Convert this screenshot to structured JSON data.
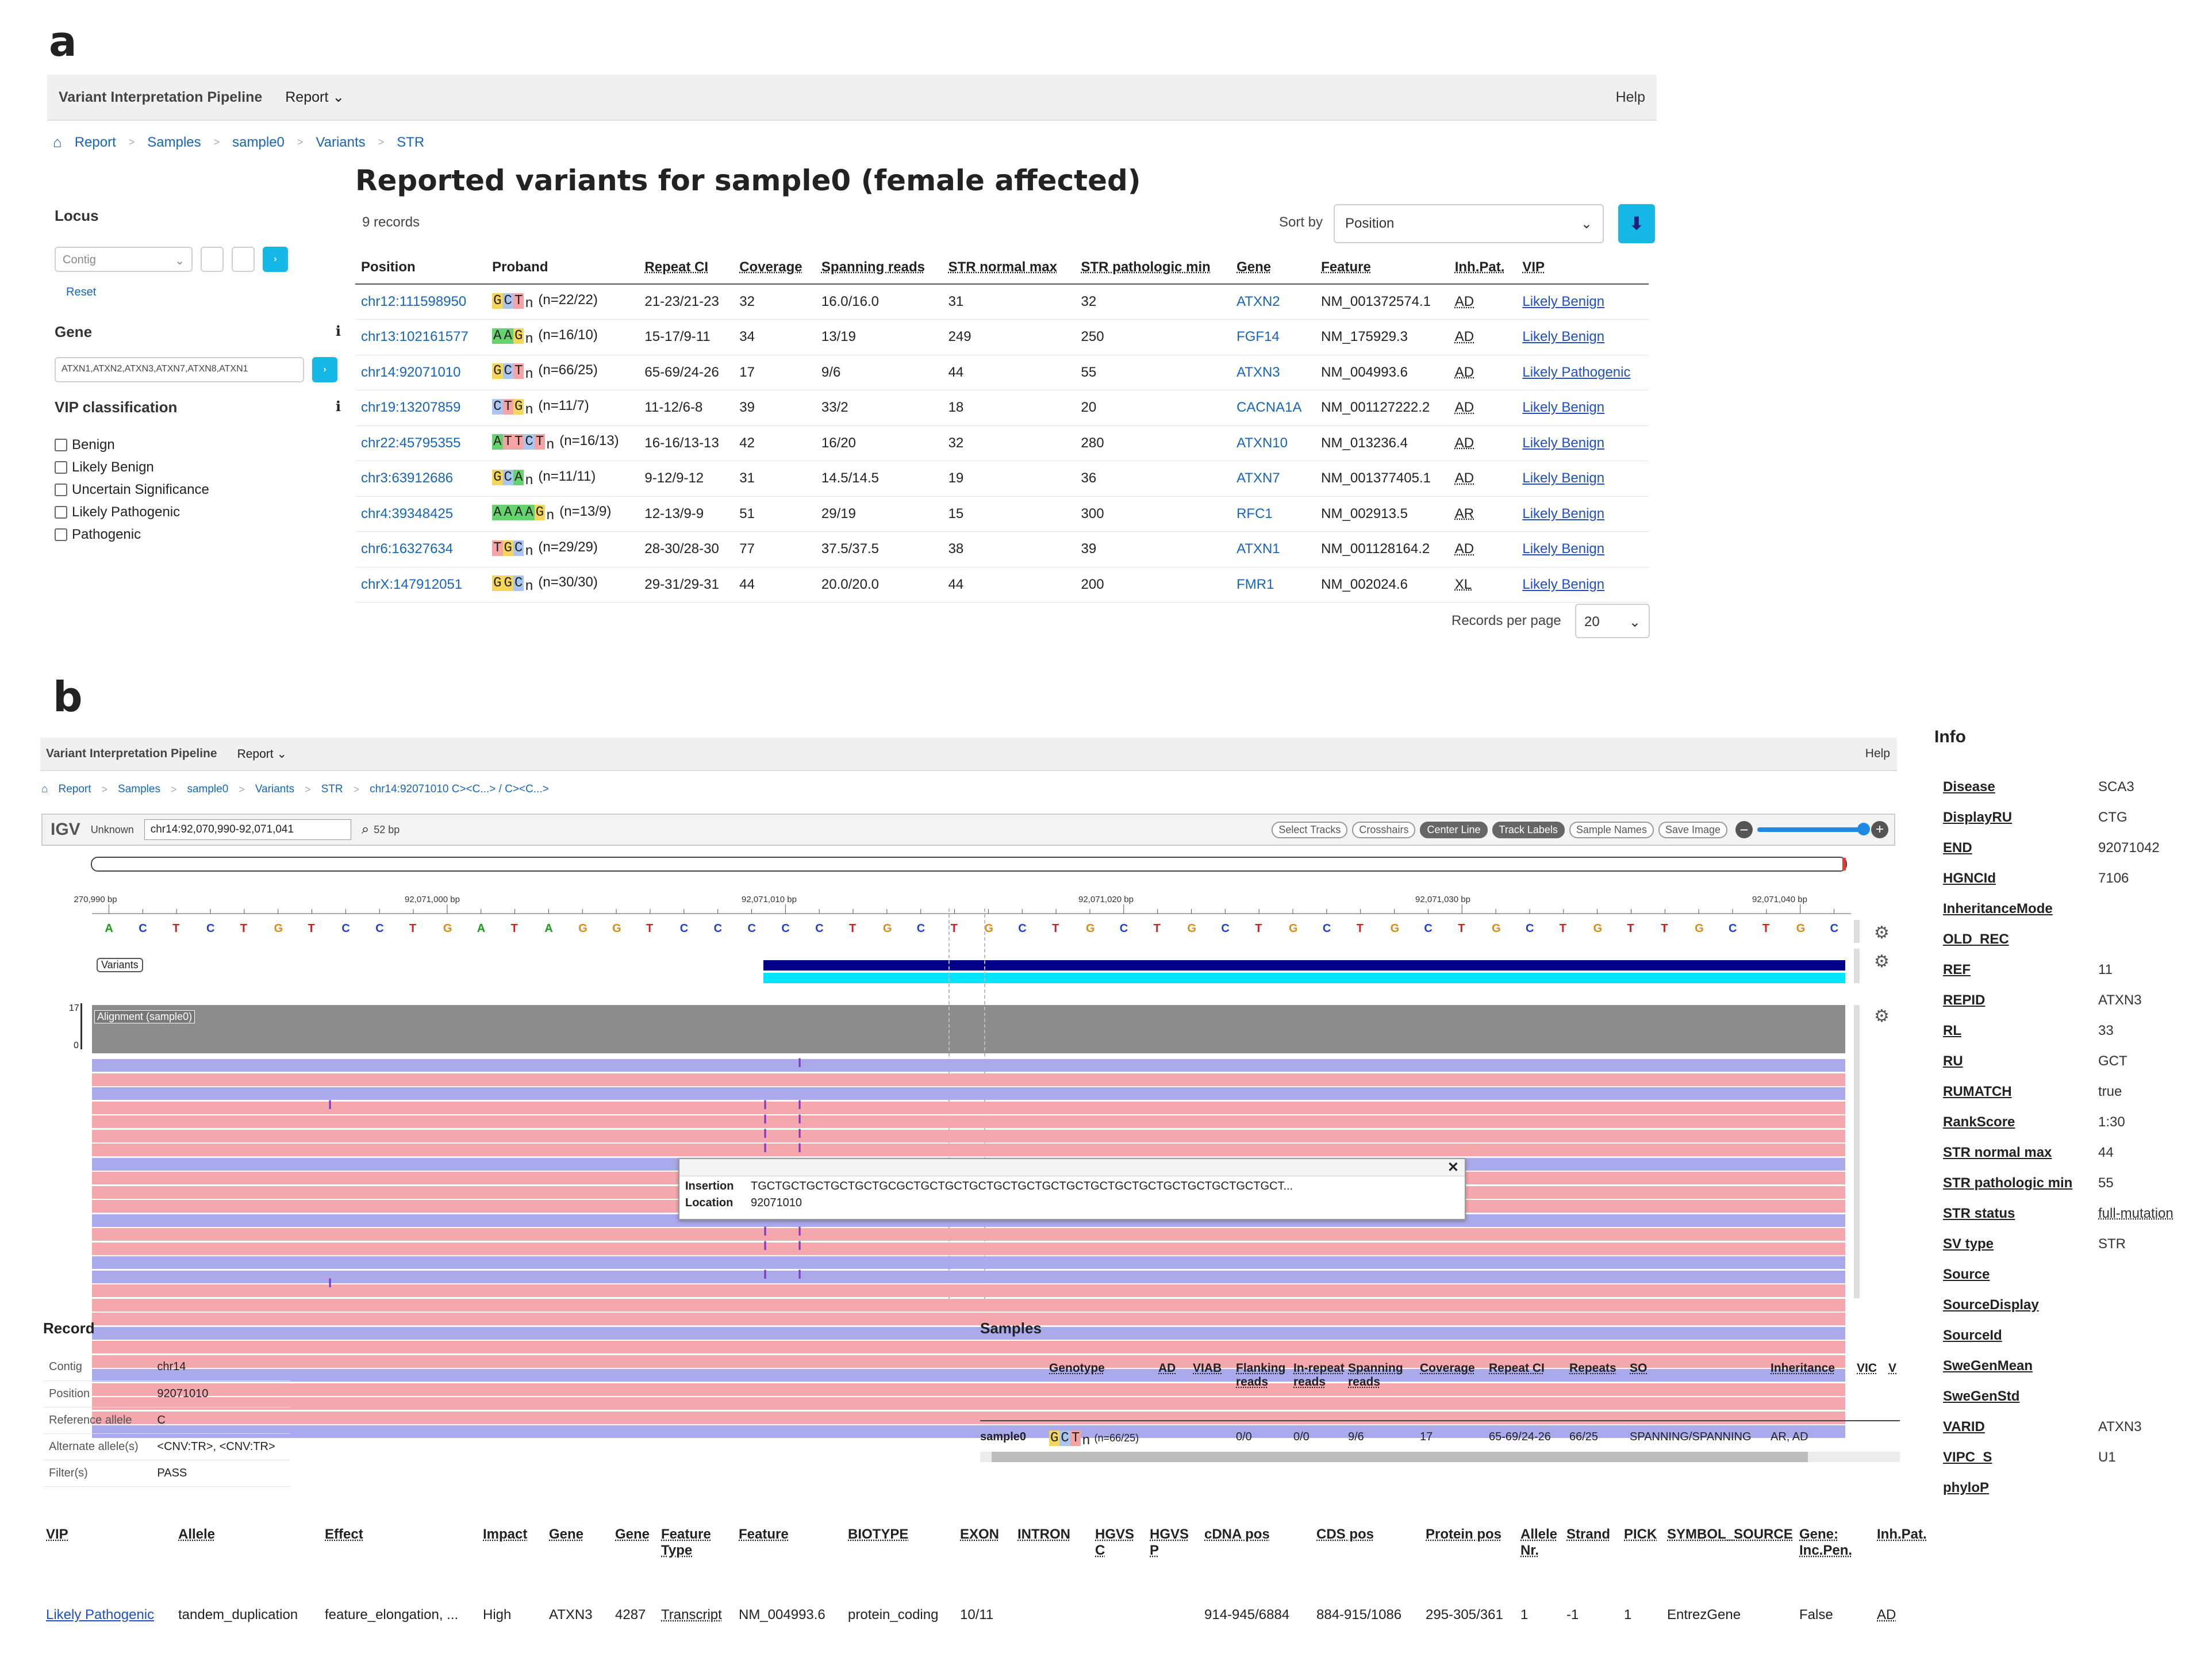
{
  "panel_a": {
    "label": "a",
    "navbar": {
      "brand": "Variant Interpretation Pipeline",
      "report": "Report",
      "help": "Help"
    },
    "breadcrumb": [
      "Report",
      "Samples",
      "sample0",
      "Variants",
      "STR"
    ],
    "title": "Reported variants for sample0 (female affected)",
    "records": "9 records",
    "sort_label": "Sort by",
    "sort_value": "Position",
    "filters": {
      "locus_label": "Locus",
      "contig_placeholder": "Contig",
      "reset": "Reset",
      "gene_label": "Gene",
      "gene_value": "ATXN1,ATXN2,ATXN3,ATXN7,ATXN8,ATXN1",
      "vip_label": "VIP classification",
      "vip_options": [
        "Benign",
        "Likely Benign",
        "Uncertain Significance",
        "Likely Pathogenic",
        "Pathogenic"
      ]
    },
    "columns": [
      "Position",
      "Proband",
      "Repeat CI",
      "Coverage",
      "Spanning reads",
      "STR normal max",
      "STR pathologic min",
      "Gene",
      "Feature",
      "Inh.Pat.",
      "VIP"
    ],
    "rows": [
      {
        "pos": "chr12:111598950",
        "motif": "GCT",
        "n": "(n=22/22)",
        "ci": "21-23/21-23",
        "cov": "32",
        "span": "16.0/16.0",
        "nmax": "31",
        "pmin": "32",
        "gene": "ATXN2",
        "feat": "NM_001372574.1",
        "inh": "AD",
        "vip": "Likely Benign"
      },
      {
        "pos": "chr13:102161577",
        "motif": "AAG",
        "n": "(n=16/10)",
        "ci": "15-17/9-11",
        "cov": "34",
        "span": "13/19",
        "nmax": "249",
        "pmin": "250",
        "gene": "FGF14",
        "feat": "NM_175929.3",
        "inh": "AD",
        "vip": "Likely Benign"
      },
      {
        "pos": "chr14:92071010",
        "motif": "GCT",
        "n": "(n=66/25)",
        "ci": "65-69/24-26",
        "cov": "17",
        "span": "9/6",
        "nmax": "44",
        "pmin": "55",
        "gene": "ATXN3",
        "feat": "NM_004993.6",
        "inh": "AD",
        "vip": "Likely Pathogenic"
      },
      {
        "pos": "chr19:13207859",
        "motif": "CTG",
        "n": "(n=11/7)",
        "ci": "11-12/6-8",
        "cov": "39",
        "span": "33/2",
        "nmax": "18",
        "pmin": "20",
        "gene": "CACNA1A",
        "feat": "NM_001127222.2",
        "inh": "AD",
        "vip": "Likely Benign"
      },
      {
        "pos": "chr22:45795355",
        "motif": "ATTCT",
        "n": "(n=16/13)",
        "ci": "16-16/13-13",
        "cov": "42",
        "span": "16/20",
        "nmax": "32",
        "pmin": "280",
        "gene": "ATXN10",
        "feat": "NM_013236.4",
        "inh": "AD",
        "vip": "Likely Benign"
      },
      {
        "pos": "chr3:63912686",
        "motif": "GCA",
        "n": "(n=11/11)",
        "ci": "9-12/9-12",
        "cov": "31",
        "span": "14.5/14.5",
        "nmax": "19",
        "pmin": "36",
        "gene": "ATXN7",
        "feat": "NM_001377405.1",
        "inh": "AD",
        "vip": "Likely Benign"
      },
      {
        "pos": "chr4:39348425",
        "motif": "AAAAG",
        "n": "(n=13/9)",
        "ci": "12-13/9-9",
        "cov": "51",
        "span": "29/19",
        "nmax": "15",
        "pmin": "300",
        "gene": "RFC1",
        "feat": "NM_002913.5",
        "inh": "AR",
        "vip": "Likely Benign"
      },
      {
        "pos": "chr6:16327634",
        "motif": "TGC",
        "n": "(n=29/29)",
        "ci": "28-30/28-30",
        "cov": "77",
        "span": "37.5/37.5",
        "nmax": "38",
        "pmin": "39",
        "gene": "ATXN1",
        "feat": "NM_001128164.2",
        "inh": "AD",
        "vip": "Likely Benign"
      },
      {
        "pos": "chrX:147912051",
        "motif": "GGC",
        "n": "(n=30/30)",
        "ci": "29-31/29-31",
        "cov": "44",
        "span": "20.0/20.0",
        "nmax": "44",
        "pmin": "200",
        "gene": "FMR1",
        "feat": "NM_002024.6",
        "inh": "XL",
        "vip": "Likely Benign"
      }
    ],
    "rpp_label": "Records per page",
    "rpp_value": "20"
  },
  "panel_b": {
    "label": "b",
    "navbar": {
      "brand": "Variant Interpretation Pipeline",
      "report": "Report",
      "help": "Help"
    },
    "breadcrumb": [
      "Report",
      "Samples",
      "sample0",
      "Variants",
      "STR",
      "chr14:92071010 C><C...> / C><C...>"
    ],
    "igv": {
      "logo": "IGV",
      "genome": "Unknown",
      "locus": "chr14:92,070,990-92,071,041",
      "width": "52 bp",
      "buttons": [
        "Select Tracks",
        "Crosshairs",
        "Center Line",
        "Track Labels",
        "Sample Names",
        "Save Image"
      ],
      "ticks": [
        "270,990 bp",
        "92,071,000 bp",
        "92,071,010 bp",
        "92,071,020 bp",
        "92,071,030 bp",
        "92,071,040 bp"
      ],
      "sequence": "ACTCTGTCCTGATAGGTCCCCCTGCTGCTGCTGCTGCTGCTGCTGTTGCTGC",
      "variants_label": "Variants",
      "alignment_label": "Alignment (sample0)",
      "cov_max": "17",
      "cov_min": "0",
      "popup": {
        "k1": "Insertion",
        "v1": "TGCTGCTGCTGCTGCTGCGCTGCTGCTGCTGCTGCTGCTGCTGCTGCTGCTGCTGCTGCTGCTGCT...",
        "k2": "Location",
        "v2": "92071010"
      }
    },
    "record": {
      "title": "Record",
      "rows": [
        [
          "Contig",
          "chr14"
        ],
        [
          "Position",
          "92071010"
        ],
        [
          "Reference allele",
          "C"
        ],
        [
          "Alternate allele(s)",
          "<CNV:TR>, <CNV:TR>"
        ],
        [
          "Filter(s)",
          "PASS"
        ]
      ]
    },
    "samples": {
      "title": "Samples",
      "columns": [
        "Genotype",
        "AD",
        "VIAB",
        "Flanking reads",
        "In-repeat reads",
        "Spanning reads",
        "Coverage",
        "Repeat CI",
        "Repeats",
        "SO",
        "Inheritance",
        "VIC",
        "V"
      ],
      "row": {
        "name": "sample0",
        "motif": "GCT",
        "n": "(n=66/25)",
        "flank": "0/0",
        "inrep": "0/0",
        "span": "9/6",
        "cov": "17",
        "ci": "65-69/24-26",
        "rep": "66/25",
        "so": "SPANNING/SPANNING",
        "inh": "AR, AD"
      }
    },
    "effects": {
      "columns": [
        "VIP",
        "Allele",
        "Effect",
        "Impact",
        "Gene",
        "Gene",
        "Feature Type",
        "Feature",
        "BIOTYPE",
        "EXON",
        "INTRON",
        "HGVS C",
        "HGVS P",
        "cDNA pos",
        "CDS pos",
        "Protein pos",
        "Allele Nr.",
        "Strand",
        "PICK",
        "SYMBOL_SOURCE",
        "Gene: Inc.Pen.",
        "Inh.Pat."
      ],
      "row": [
        "Likely Pathogenic",
        "tandem_duplication",
        "feature_elongation, ...",
        "High",
        "ATXN3",
        "4287",
        "Transcript",
        "NM_004993.6",
        "protein_coding",
        "10/11",
        "",
        "",
        "",
        "914-945/6884",
        "884-915/1086",
        "295-305/361",
        "1",
        "-1",
        "1",
        "EntrezGene",
        "False",
        "AD"
      ]
    },
    "info": {
      "title": "Info",
      "rows": [
        [
          "Disease",
          "SCA3"
        ],
        [
          "DisplayRU",
          "CTG"
        ],
        [
          "END",
          "92071042"
        ],
        [
          "HGNCId",
          "7106"
        ],
        [
          "InheritanceMode",
          ""
        ],
        [
          "OLD_REC",
          ""
        ],
        [
          "REF",
          "11"
        ],
        [
          "REPID",
          "ATXN3"
        ],
        [
          "RL",
          "33"
        ],
        [
          "RU",
          "GCT"
        ],
        [
          "RUMATCH",
          "true"
        ],
        [
          "RankScore",
          "1:30"
        ],
        [
          "STR normal max",
          "44"
        ],
        [
          "STR pathologic min",
          "55"
        ],
        [
          "STR status",
          "full-mutation"
        ],
        [
          "SV type",
          "STR"
        ],
        [
          "Source",
          ""
        ],
        [
          "SourceDisplay",
          ""
        ],
        [
          "SourceId",
          ""
        ],
        [
          "SweGenMean",
          ""
        ],
        [
          "SweGenStd",
          ""
        ],
        [
          "VARID",
          "ATXN3"
        ],
        [
          "VIPC_S",
          "U1"
        ],
        [
          "phyloP",
          ""
        ]
      ]
    }
  },
  "colors": {
    "link": "#1565c0",
    "variant_bar": "#00008b",
    "variant_bar2": "#00e5ff",
    "read_blue": "#a9a9ec",
    "read_pink": "#f4a7ad",
    "coverage": "#8c8c8c",
    "accent": "#16b8e8"
  }
}
